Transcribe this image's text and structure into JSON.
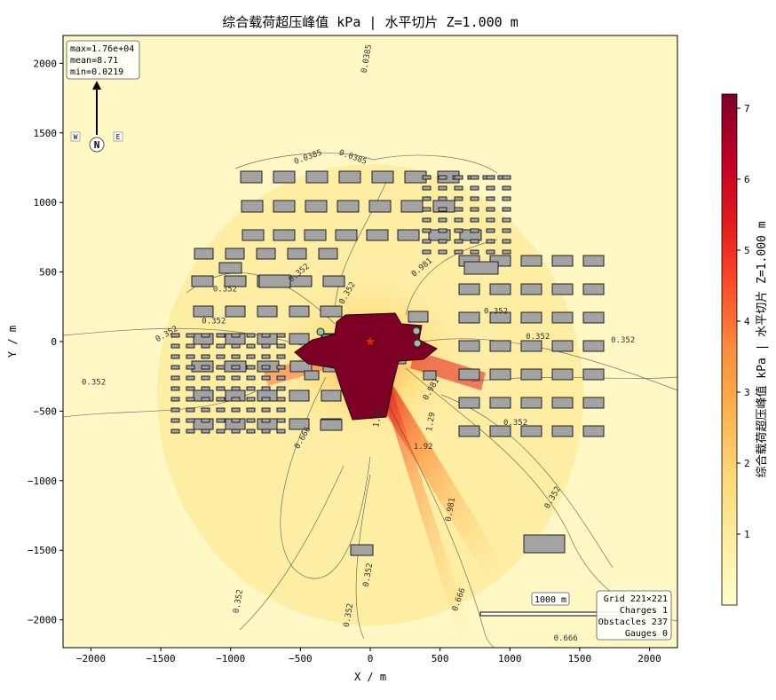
{
  "chart_data": {
    "type": "heatmap",
    "title": "综合载荷超压峰值 kPa  |  水平切片 Z=1.000 m",
    "xlabel": "X / m",
    "ylabel": "Y / m",
    "xlim": [
      -2200,
      2200
    ],
    "ylim": [
      -2200,
      2200
    ],
    "xticks": [
      -2000,
      -1500,
      -1000,
      -500,
      0,
      500,
      1000,
      1500,
      2000
    ],
    "yticks": [
      2000,
      1500,
      1000,
      500,
      0,
      -500,
      -1000,
      -1500,
      -2000
    ],
    "colorbar": {
      "label": "综合载荷超压峰值 kPa  |  水平切片 Z=1.000 m",
      "range": [
        0,
        7.2
      ],
      "ticks": [
        1,
        2,
        3,
        4,
        5,
        6,
        7
      ],
      "colormap": "YlOrRd",
      "colors": [
        "#ffffcc",
        "#ffeda0",
        "#fed976",
        "#feb24c",
        "#fd8d3c",
        "#fc4e2a",
        "#e31a1c",
        "#bd0026",
        "#800026"
      ]
    },
    "stats_box": [
      "max=1.76e+04",
      "mean=8.71",
      "min=0.0219"
    ],
    "north_arrow": {
      "N": "N",
      "W": "W",
      "E": "E"
    },
    "scale_bar_label": "1000 m",
    "info_box": [
      "Grid 221×221",
      "Charges 1",
      "Obstacles 237",
      "Gauges 0"
    ],
    "contour_levels": [
      "0.0385",
      "0.352",
      "0.666",
      "0.981",
      "1.29",
      "1.92"
    ],
    "contour_labels": [
      {
        "t": "0.0385",
        "x": -10,
        "y": 2030,
        "rot": -80
      },
      {
        "t": "0.0385",
        "x": -440,
        "y": 1310,
        "rot": -20
      },
      {
        "t": "0.0385",
        "x": -130,
        "y": 1310,
        "rot": 20
      },
      {
        "t": "0.352",
        "x": -1450,
        "y": 40,
        "rot": -30
      },
      {
        "t": "0.352",
        "x": -1980,
        "y": -310,
        "rot": 0
      },
      {
        "t": "0.352",
        "x": -1120,
        "y": 130,
        "rot": 0
      },
      {
        "t": "0.352",
        "x": -1040,
        "y": 360,
        "rot": 0
      },
      {
        "t": "0.352",
        "x": -500,
        "y": 480,
        "rot": -40
      },
      {
        "t": "0.352",
        "x": -150,
        "y": 340,
        "rot": -60
      },
      {
        "t": "0.352",
        "x": 900,
        "y": 200,
        "rot": 0
      },
      {
        "t": "0.352",
        "x": 1200,
        "y": 20,
        "rot": 0
      },
      {
        "t": "0.352",
        "x": 1810,
        "y": -5,
        "rot": 0
      },
      {
        "t": "0.352",
        "x": 1040,
        "y": -600,
        "rot": 0
      },
      {
        "t": "0.352",
        "x": 1320,
        "y": -1130,
        "rot": -60
      },
      {
        "t": "0.352",
        "x": 0,
        "y": -1680,
        "rot": -80
      },
      {
        "t": "0.352",
        "x": -930,
        "y": -1870,
        "rot": -80
      },
      {
        "t": "0.352",
        "x": -140,
        "y": -1970,
        "rot": -80
      },
      {
        "t": "0.666",
        "x": -470,
        "y": -700,
        "rot": -60
      },
      {
        "t": "0.666",
        "x": 650,
        "y": -1860,
        "rot": -70
      },
      {
        "t": "0.666",
        "x": 1400,
        "y": -2150,
        "rot": 0
      },
      {
        "t": "0.981",
        "x": 380,
        "y": 520,
        "rot": -40
      },
      {
        "t": "0.981",
        "x": 450,
        "y": -350,
        "rot": -60
      },
      {
        "t": "0.981",
        "x": 590,
        "y": -1210,
        "rot": -80
      },
      {
        "t": "1.29",
        "x": 70,
        "y": -550,
        "rot": -80
      },
      {
        "t": "1.29",
        "x": 450,
        "y": -580,
        "rot": -80
      },
      {
        "t": "1.92",
        "x": 380,
        "y": -770,
        "rot": 0
      }
    ],
    "charges": [
      {
        "x": 0,
        "y": 0
      }
    ],
    "obstacle_count": 237,
    "gauge_count": 0
  }
}
